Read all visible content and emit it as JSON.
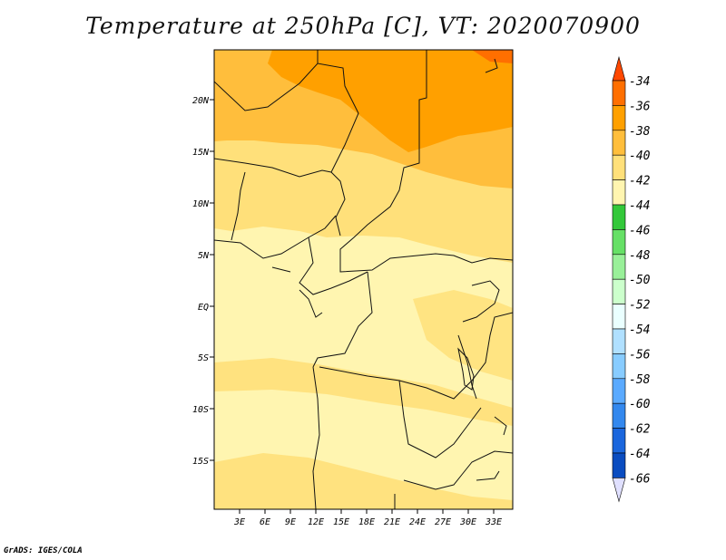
{
  "title": "Temperature at 250hPa [C], VT: 2020070900",
  "credit": "GrADS: IGES/COLA",
  "map": {
    "lat_labels": [
      "20N",
      "15N",
      "10N",
      "5N",
      "EQ",
      "5S",
      "10S",
      "15S"
    ],
    "lon_labels": [
      "3E",
      "6E",
      "9E",
      "12E",
      "15E",
      "18E",
      "21E",
      "24E",
      "27E",
      "30E",
      "33E"
    ]
  },
  "colorbar": {
    "labels": [
      "-34",
      "-36",
      "-38",
      "-40",
      "-42",
      "-44",
      "-46",
      "-48",
      "-50",
      "-52",
      "-54",
      "-56",
      "-58",
      "-60",
      "-62",
      "-64",
      "-66"
    ],
    "colors": [
      "#ff4800",
      "#ff6f00",
      "#ffa000",
      "#ffbe3c",
      "#ffe07a",
      "#fff5b0",
      "#33c83a",
      "#66e066",
      "#99f099",
      "#ccffcc",
      "#eaffff",
      "#b0e0ff",
      "#88ccff",
      "#5aaaff",
      "#3388ee",
      "#1a66dd",
      "#0a4cc0",
      "#000a7a",
      "#e0e0ff"
    ]
  }
}
